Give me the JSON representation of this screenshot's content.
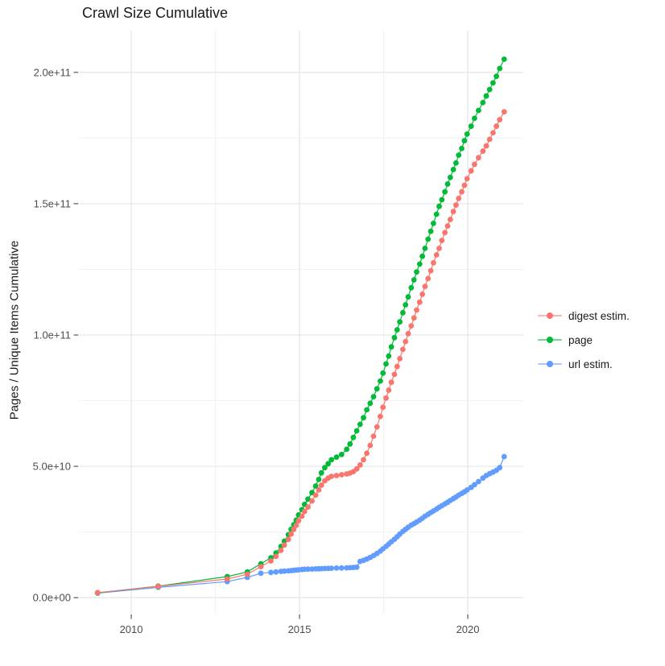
{
  "page": {
    "background": "#ffffff"
  },
  "chart_data": {
    "type": "line",
    "title": "Crawl Size Cumulative",
    "xlabel": "",
    "ylabel": "Pages / Unique Items Cumulative",
    "legend_position": "right",
    "grid": true,
    "xlim": [
      2008.42,
      2021.65
    ],
    "ylim": [
      -6400000000.0,
      215900000000.0
    ],
    "x_ticks": {
      "values": [
        2010,
        2015,
        2020
      ],
      "labels": [
        "2010",
        "2015",
        "2020"
      ],
      "minor": [
        2012.5,
        2017.5
      ]
    },
    "y_ticks": {
      "values": [
        0,
        50000000000.0,
        100000000000.0,
        150000000000.0,
        200000000000.0
      ],
      "labels": [
        "0.0e+00",
        "5.0e+10",
        "1.0e+11",
        "1.5e+11",
        "2.0e+11"
      ],
      "minor": [
        25000000000.0,
        75000000000.0,
        125000000000.0,
        175000000000.0
      ]
    },
    "x": [
      2009.0,
      2010.8,
      2012.85,
      2013.45,
      2013.85,
      2014.15,
      2014.3,
      2014.45,
      2014.55,
      2014.67,
      2014.75,
      2014.83,
      2014.9,
      2014.97,
      2015.07,
      2015.15,
      2015.25,
      2015.37,
      2015.48,
      2015.57,
      2015.65,
      2015.75,
      2015.85,
      2015.95,
      2016.1,
      2016.25,
      2016.4,
      2016.5,
      2016.6,
      2016.7,
      2016.8,
      2016.9,
      2017.0,
      2017.1,
      2017.2,
      2017.3,
      2017.4,
      2017.48,
      2017.57,
      2017.65,
      2017.73,
      2017.82,
      2017.9,
      2017.98,
      2018.07,
      2018.15,
      2018.23,
      2018.32,
      2018.4,
      2018.48,
      2018.57,
      2018.65,
      2018.73,
      2018.82,
      2018.9,
      2018.98,
      2019.07,
      2019.15,
      2019.23,
      2019.32,
      2019.4,
      2019.48,
      2019.57,
      2019.65,
      2019.73,
      2019.82,
      2019.9,
      2019.98,
      2020.1,
      2020.2,
      2020.32,
      2020.45,
      2020.55,
      2020.65,
      2020.75,
      2020.85,
      2020.95,
      2021.08
    ],
    "series": [
      {
        "name": "digest estim.",
        "color": "#F8766D",
        "values": [
          1900000000.0,
          4300000000.0,
          7100000000.0,
          8900000000.0,
          11800000000.0,
          14000000000.0,
          15700000000.0,
          18000000000.0,
          20000000000.0,
          22200000000.0,
          24200000000.0,
          26000000000.0,
          27500000000.0,
          29300000000.0,
          31000000000.0,
          32800000000.0,
          34500000000.0,
          36800000000.0,
          39000000000.0,
          41000000000.0,
          42800000000.0,
          44500000000.0,
          45500000000.0,
          46200000000.0,
          46500000000.0,
          46800000000.0,
          47100000000.0,
          47400000000.0,
          48000000000.0,
          49000000000.0,
          50500000000.0,
          52500000000.0,
          55000000000.0,
          58000000000.0,
          61500000000.0,
          65000000000.0,
          69000000000.0,
          72500000000.0,
          76000000000.0,
          79000000000.0,
          82000000000.0,
          85000000000.0,
          88000000000.0,
          91000000000.0,
          94500000000.0,
          97500000000.0,
          100500000000.0,
          103500000000.0,
          106500000000.0,
          109500000000.0,
          112500000000.0,
          115500000000.0,
          118500000000.0,
          121500000000.0,
          124500000000.0,
          127500000000.0,
          130500000000.0,
          133000000000.0,
          136000000000.0,
          139000000000.0,
          141500000000.0,
          144000000000.0,
          147000000000.0,
          149500000000.0,
          152000000000.0,
          154500000000.0,
          157000000000.0,
          159500000000.0,
          162500000000.0,
          165000000000.0,
          167500000000.0,
          170000000000.0,
          172000000000.0,
          174500000000.0,
          177000000000.0,
          179500000000.0,
          182000000000.0,
          185000000000.0
        ]
      },
      {
        "name": "page",
        "color": "#00BA38",
        "values": [
          1850000000.0,
          4400000000.0,
          8000000000.0,
          9800000000.0,
          12900000000.0,
          15200000000.0,
          17000000000.0,
          19500000000.0,
          21500000000.0,
          24000000000.0,
          26000000000.0,
          27800000000.0,
          29500000000.0,
          31500000000.0,
          33500000000.0,
          35500000000.0,
          37500000000.0,
          40000000000.0,
          42500000000.0,
          45000000000.0,
          47500000000.0,
          49500000000.0,
          51000000000.0,
          52500000000.0,
          53500000000.0,
          54500000000.0,
          56500000000.0,
          58500000000.0,
          61000000000.0,
          63500000000.0,
          66000000000.0,
          68500000000.0,
          71500000000.0,
          74000000000.0,
          76500000000.0,
          79500000000.0,
          82500000000.0,
          85500000000.0,
          89000000000.0,
          92000000000.0,
          95500000000.0,
          99000000000.0,
          102000000000.0,
          105000000000.0,
          108500000000.0,
          111500000000.0,
          114500000000.0,
          118000000000.0,
          121000000000.0,
          124000000000.0,
          127000000000.0,
          130000000000.0,
          133000000000.0,
          136500000000.0,
          139500000000.0,
          142500000000.0,
          146000000000.0,
          149000000000.0,
          151500000000.0,
          154500000000.0,
          157500000000.0,
          160000000000.0,
          163000000000.0,
          165500000000.0,
          168500000000.0,
          171000000000.0,
          174000000000.0,
          176500000000.0,
          179500000000.0,
          182500000000.0,
          185500000000.0,
          188500000000.0,
          191000000000.0,
          193500000000.0,
          196000000000.0,
          198500000000.0,
          201500000000.0,
          205000000000.0
        ]
      },
      {
        "name": "url estim.",
        "color": "#619CFF",
        "values": [
          1700000000.0,
          3900000000.0,
          6100000000.0,
          7700000000.0,
          9300000000.0,
          9600000000.0,
          9800000000.0,
          10000000000.0,
          10100000000.0,
          10200000000.0,
          10300000000.0,
          10400000000.0,
          10500000000.0,
          10600000000.0,
          10700000000.0,
          10800000000.0,
          10850000000.0,
          10900000000.0,
          10950000000.0,
          11000000000.0,
          11050000000.0,
          11100000000.0,
          11150000000.0,
          11200000000.0,
          11250000000.0,
          11300000000.0,
          11350000000.0,
          11400000000.0,
          11500000000.0,
          11600000000.0,
          13800000000.0,
          14200000000.0,
          14700000000.0,
          15300000000.0,
          16000000000.0,
          16800000000.0,
          17700000000.0,
          18600000000.0,
          19500000000.0,
          20400000000.0,
          21300000000.0,
          22200000000.0,
          23200000000.0,
          24200000000.0,
          25200000000.0,
          26000000000.0,
          26800000000.0,
          27600000000.0,
          28200000000.0,
          28800000000.0,
          29500000000.0,
          30200000000.0,
          31000000000.0,
          31700000000.0,
          32400000000.0,
          33000000000.0,
          33700000000.0,
          34400000000.0,
          35000000000.0,
          35700000000.0,
          36300000000.0,
          37000000000.0,
          37700000000.0,
          38300000000.0,
          39000000000.0,
          39700000000.0,
          40300000000.0,
          41000000000.0,
          42000000000.0,
          43000000000.0,
          44200000000.0,
          45500000000.0,
          46500000000.0,
          47200000000.0,
          47800000000.0,
          48500000000.0,
          49500000000.0,
          53700000000.0
        ]
      }
    ],
    "style": {
      "grid_major": "#E5E5E5",
      "grid_minor": "#F2F2F2",
      "tick_color": "#333333",
      "axis_text_color": "#4D4D4D",
      "text_color": "#1A1A1A",
      "point_radius": 3.4
    }
  }
}
